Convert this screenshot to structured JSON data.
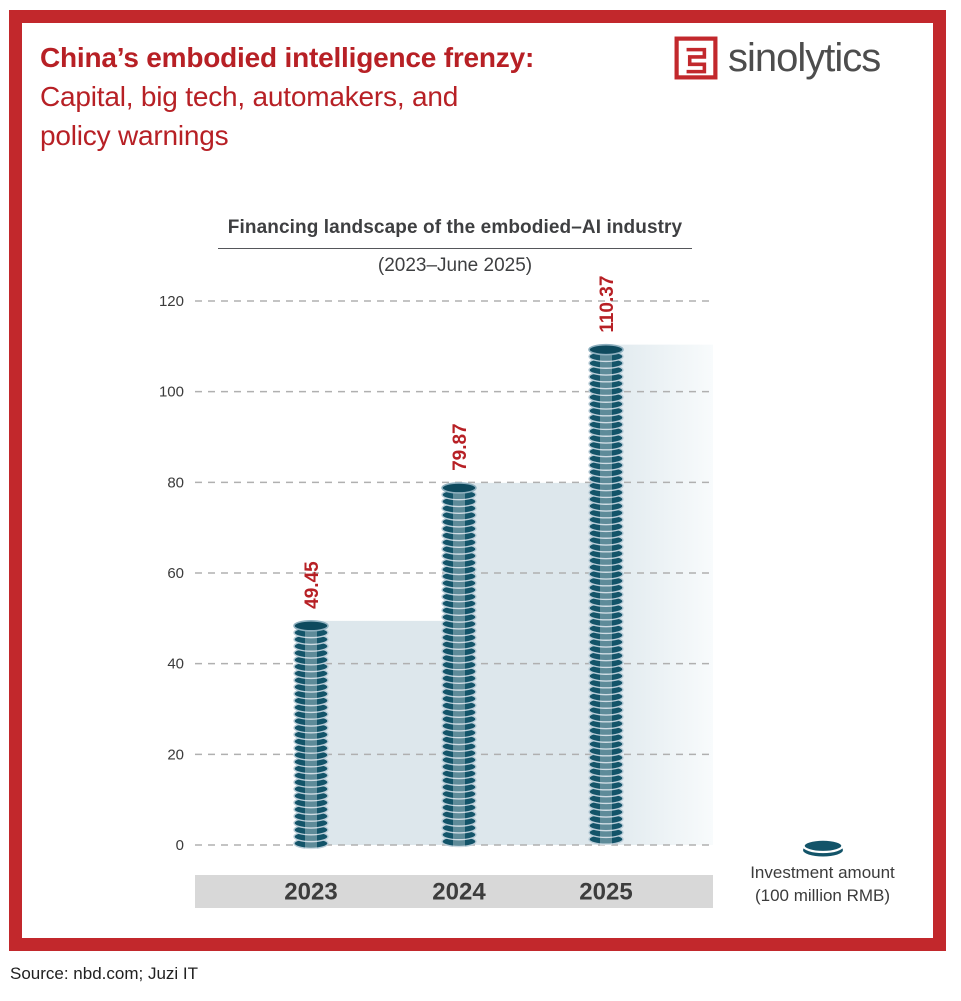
{
  "header": {
    "title_line1": "China’s embodied intelligence frenzy:",
    "title_line2": "Capital, big tech, automakers, and",
    "title_line3": "policy warnings",
    "brand": "sinolytics"
  },
  "chart_data": {
    "type": "bar",
    "title": "Financing landscape of the embodied–AI industry",
    "subtitle": "(2023–June 2025)",
    "categories": [
      "2023",
      "2024",
      "2025"
    ],
    "values": [
      49.45,
      79.87,
      110.37
    ],
    "value_labels": [
      "49.45",
      "79.87",
      "110.37"
    ],
    "yticks": [
      0,
      20,
      40,
      60,
      80,
      100,
      120
    ],
    "ylim": [
      0,
      120
    ],
    "grid": "horizontal-dashed",
    "bar_style": "coin-stack",
    "area_behind_bars": "stepped-fill-fading-right",
    "legend": {
      "icon": "coin-icon",
      "line1": "Investment amount",
      "line2": "(100 million RMB)",
      "position": "bottom-right"
    }
  },
  "footer": {
    "source": "Source: nbd.com; Juzi IT"
  },
  "colors": {
    "accent_red": "#b72025",
    "border_red": "#c2282c",
    "coin_body": "#135469",
    "coin_ring": "#b9ccd7",
    "coin_top": "#0e4a5e",
    "coin_top_rim": "#8fb0bf",
    "area_fill": "#dde7ec",
    "area_fade": "#f8fbfc",
    "band_gray": "#d8d8d8",
    "gridline_gray": "#b0b0b0",
    "text_dark": "#3b3b3b"
  }
}
